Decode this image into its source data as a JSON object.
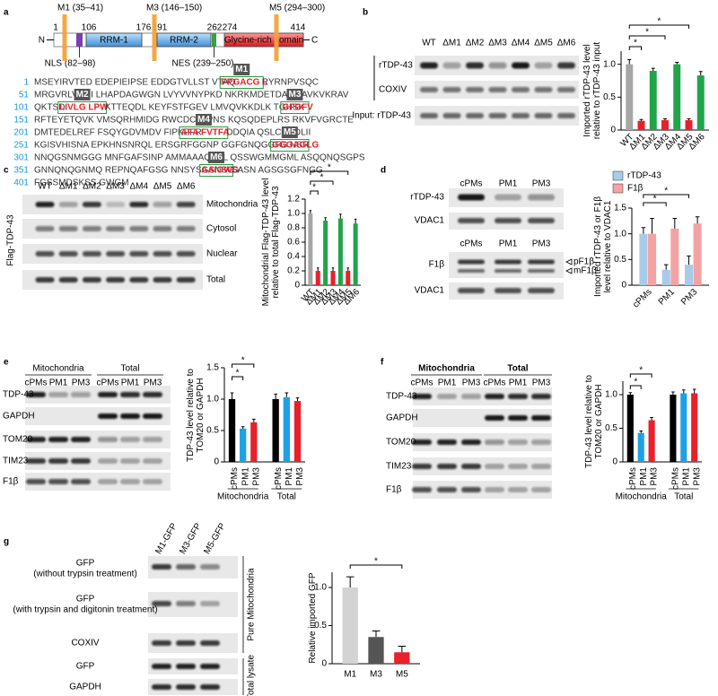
{
  "panel_labels": [
    "a",
    "b",
    "c",
    "d",
    "e",
    "f",
    "g"
  ],
  "domain_diagram": {
    "mutations": [
      "M1 (35–41)",
      "M3 (146–150)",
      "M5 (294–300)"
    ],
    "termini": [
      "N",
      "C"
    ],
    "positions": [
      "1",
      "106",
      "176",
      "191",
      "262",
      "274",
      "414"
    ],
    "domains": [
      "RRM-1",
      "RRM-2",
      "Glycine-rich domain"
    ],
    "signals": [
      "NLS (82–98)",
      "NES (239–250)"
    ],
    "sequence": [
      {
        "number": "1",
        "segments": [
          {
            "text": "MSEYIRVTED EDEPIEIPSE EDDGTVLLST VTAQ"
          },
          {
            "text": "FPGACG L",
            "color": "#e8202a"
          },
          {
            "text": "RYRNPVSQC"
          }
        ]
      },
      {
        "number": "51",
        "segments": [
          {
            "text": "MRGVRLVEGI LHAPDAGWGN LVYVVNYPKD NKRKMDETDA SSAVKVKRAV"
          }
        ]
      },
      {
        "number": "101",
        "segments": [
          {
            "text": "QKTSD"
          },
          {
            "text": "LIVLG LPW",
            "color": "#e8202a"
          },
          {
            "text": "KTTEQDL KEYFSTFGEV LMVQVKKDLK TGHSK"
          },
          {
            "text": "GFGFV",
            "color": "#e8202a"
          }
        ]
      },
      {
        "number": "151",
        "segments": [
          {
            "text": "RFTEYETQVK VMSQRHMIDG RWCDCKLPNS KQSQDEPLRS RKVFVGRCTE"
          }
        ]
      },
      {
        "number": "201",
        "segments": [
          {
            "text": "DMTEDELREF FSQYGDVMDV FIPKPFR"
          },
          {
            "text": "AFA FVTFA",
            "color": "#e8202a"
          },
          {
            "text": "DDQIA QSLCGEDLII"
          }
        ]
      },
      {
        "number": "251",
        "segments": [
          {
            "text": "KGISVHISNA EPKHNSNRQL ERSGRFGGNP GGFGNQGGFG NSR"
          },
          {
            "text": "GGGAGLG",
            "color": "#e8202a"
          }
        ]
      },
      {
        "number": "301",
        "segments": [
          {
            "text": "NNQGSNMGGG MNFGAFSINP AMMAAAQAAL QSSWGMMGML ASQQNQSGPS"
          }
        ]
      },
      {
        "number": "351",
        "segments": [
          {
            "text": "GNNQNQGNMQ REPNQAFGSG NNSYSGSNSG "
          },
          {
            "text": "AAIGWG",
            "color": "#e8202a"
          },
          {
            "text": "SASN AGSGSGFNGG"
          }
        ]
      },
      {
        "number": "401",
        "segments": [
          {
            "text": "FGSSMDSKSS GWGM"
          }
        ]
      }
    ],
    "motif_labels": [
      "M1",
      "M2",
      "M3",
      "M4",
      "M5",
      "M6"
    ]
  },
  "blots": [
    {
      "lanes": [
        "WT",
        "ΔM1",
        "ΔM2",
        "ΔM3",
        "ΔM4",
        "ΔM5",
        "ΔM6"
      ],
      "rows": [
        "rTDP-43",
        "COXIV",
        "Input: rTDP-43"
      ]
    },
    {
      "lanes": [
        "WT",
        "ΔM1",
        "ΔM2",
        "ΔM3",
        "ΔM4",
        "ΔM5",
        "ΔM6"
      ],
      "rows": [
        "Mitochondria",
        "Cytosol",
        "Nuclear",
        "Total"
      ],
      "side_label": "Flag-TDP-43"
    },
    {
      "upper": {
        "lanes": [
          "cPMs",
          "PM1",
          "PM3"
        ],
        "rows": [
          "rTDP-43",
          "VDAC1"
        ]
      },
      "lower": {
        "lanes": [
          "cPMs",
          "PM1",
          "PM3"
        ],
        "rows": [
          "F1β",
          "VDAC1"
        ],
        "band_labels": [
          "pF1β",
          "mF1β"
        ]
      }
    },
    {
      "headers": [
        "Mitochondria",
        "Total"
      ],
      "lanes": [
        "cPMs",
        "PM1",
        "PM3",
        "cPMs",
        "PM1",
        "PM3"
      ],
      "rows": [
        "TDP-43",
        "GAPDH",
        "TOM20",
        "TIM23",
        "F1β"
      ]
    },
    {
      "headers": [
        "Mitochondria",
        "Total"
      ],
      "lanes": [
        "cPMs",
        "PM1",
        "PM3",
        "cPMs",
        "PM1",
        "PM3"
      ],
      "rows": [
        "TDP-43",
        "GAPDH",
        "TOM20",
        "TIM23",
        "F1β"
      ]
    },
    {
      "lanes": [
        "M1-GFP",
        "M3-GFP",
        "M5-GFP"
      ],
      "rows": [
        [
          "GFP",
          "(without trypsin treatment)"
        ],
        [
          "GFP",
          "(with trypsin and digitonin treatment)"
        ],
        [
          "COXIV"
        ],
        [
          "GFP"
        ],
        [
          "GAPDH"
        ]
      ],
      "sections": [
        "Pure Mitochondria",
        "Total lysate"
      ]
    }
  ],
  "chart_data": [
    {
      "type": "bar",
      "ylabel": "Imported rTDP-43 level relative to rTDP-43 input",
      "categories": [
        "WT",
        "ΔM1",
        "ΔM2",
        "ΔM3",
        "ΔM4",
        "ΔM5",
        "ΔM6"
      ],
      "values": [
        1.0,
        0.14,
        0.9,
        0.15,
        1.0,
        0.15,
        0.83
      ],
      "errors": [
        0.07,
        0.02,
        0.04,
        0.02,
        0.03,
        0.02,
        0.06
      ],
      "colors": [
        "#a6a6a6",
        "#e8202a",
        "#21a34a",
        "#e8202a",
        "#21a34a",
        "#e8202a",
        "#21a34a"
      ],
      "ylim": [
        0,
        1.2
      ],
      "yticks": [
        0,
        0.5,
        {
          "value": 1.0,
          "label": "1.0"
        }
      ],
      "annotations": [
        "*",
        "*",
        "*"
      ]
    },
    {
      "type": "bar",
      "ylabel": "Mitochondrial Flag-TDP-43 level relative to total Flag-TDP-43",
      "categories": [
        "WT",
        "ΔM1",
        "ΔM2",
        "ΔM3",
        "ΔM4",
        "ΔM5",
        "ΔM6"
      ],
      "values": [
        1.0,
        0.2,
        0.9,
        0.2,
        0.93,
        0.2,
        0.86
      ],
      "errors": [
        0.04,
        0.04,
        0.04,
        0.04,
        0.06,
        0.04,
        0.06
      ],
      "colors": [
        "#a6a6a6",
        "#e8202a",
        "#21a34a",
        "#e8202a",
        "#21a34a",
        "#e8202a",
        "#21a34a"
      ],
      "ylim": [
        0,
        1.2
      ],
      "yticks": [
        0,
        0.2,
        0.4,
        0.6,
        0.8,
        {
          "value": 1.0,
          "label": "1.0"
        },
        1.2
      ],
      "annotations": [
        "*",
        "*",
        "*"
      ]
    },
    {
      "type": "grouped-bar",
      "ylabel": "Imported rTDP-43 or F1β level relative to VDAC1",
      "categories": [
        "cPMs",
        "PM1",
        "PM3"
      ],
      "series": [
        {
          "name": "rTDP-43",
          "color": "#a9cbe9",
          "values": [
            1.0,
            0.3,
            0.4
          ],
          "errors": [
            0.12,
            0.1,
            0.17
          ]
        },
        {
          "name": "F1β",
          "color": "#f3a3a3",
          "values": [
            1.0,
            1.1,
            1.2
          ],
          "errors": [
            0.3,
            0.2,
            0.13
          ]
        }
      ],
      "ylim": [
        0,
        1.5
      ],
      "yticks": [
        0,
        0.5,
        {
          "value": 1.0,
          "label": "1.0"
        },
        1.5
      ],
      "annotations": [
        "*",
        "*"
      ]
    },
    {
      "type": "bar",
      "ylabel": "TDP-43 level relative to TOM20 or GAPDH",
      "categories": [
        "cPMs",
        "PM1",
        "PM3",
        "cPMs",
        "PM1",
        "PM3"
      ],
      "groups": [
        "Mitochondria",
        "Total"
      ],
      "values": [
        1.0,
        0.53,
        0.63,
        1.0,
        1.03,
        0.97
      ],
      "errors": [
        0.1,
        0.03,
        0.05,
        0.08,
        0.07,
        0.05
      ],
      "colors": [
        "#000000",
        "#1ea0e6",
        "#e8202a",
        "#000000",
        "#1ea0e6",
        "#e8202a"
      ],
      "ylim": [
        0,
        1.5
      ],
      "yticks": [
        0,
        0.5,
        {
          "value": 1.0,
          "label": "1.0"
        },
        1.5
      ],
      "annotations": [
        "*",
        "*"
      ]
    },
    {
      "type": "bar",
      "ylabel": "TDP-43 level relative to TOM20 or GAPDH",
      "categories": [
        "cPMs",
        "PM1",
        "PM3",
        "cPMs",
        "PM1",
        "PM3"
      ],
      "groups": [
        "Mitochondria",
        "Total"
      ],
      "values": [
        1.0,
        0.43,
        0.62,
        1.0,
        1.02,
        1.02
      ],
      "errors": [
        0.03,
        0.03,
        0.04,
        0.04,
        0.05,
        0.06
      ],
      "colors": [
        "#000000",
        "#1ea0e6",
        "#e8202a",
        "#000000",
        "#1ea0e6",
        "#e8202a"
      ],
      "ylim": [
        0,
        1.2
      ],
      "yticks": [
        0,
        0.5,
        {
          "value": 1.0,
          "label": "1.0"
        }
      ],
      "annotations": [
        "*",
        "*"
      ]
    },
    {
      "type": "bar",
      "ylabel": "Relative imported GFP",
      "categories": [
        "M1",
        "M3",
        "M5"
      ],
      "values": [
        1.0,
        0.35,
        0.15
      ],
      "errors": [
        0.14,
        0.08,
        0.08
      ],
      "colors": [
        "#d3d3d3",
        "#555555",
        "#e8202a"
      ],
      "ylim": [
        0,
        1.2
      ],
      "yticks": [
        0,
        0.5,
        {
          "value": 1.0,
          "label": "1.0"
        }
      ],
      "annotations": [
        "*"
      ]
    }
  ]
}
